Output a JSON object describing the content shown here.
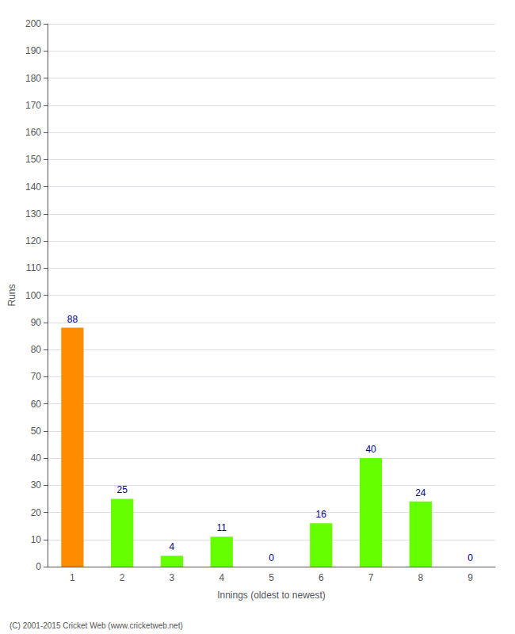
{
  "chart_data": {
    "type": "bar",
    "categories": [
      "1",
      "2",
      "3",
      "4",
      "5",
      "6",
      "7",
      "8",
      "9"
    ],
    "values": [
      88,
      25,
      4,
      11,
      0,
      16,
      40,
      24,
      0
    ],
    "colors": [
      "#FF8C00",
      "#66FF00",
      "#66FF00",
      "#66FF00",
      "#66FF00",
      "#66FF00",
      "#66FF00",
      "#66FF00",
      "#66FF00"
    ],
    "xlabel": "Innings (oldest to newest)",
    "ylabel": "Runs",
    "ylim": [
      0,
      200
    ],
    "yticks": [
      0,
      10,
      20,
      30,
      40,
      50,
      60,
      70,
      80,
      90,
      100,
      110,
      120,
      130,
      140,
      150,
      160,
      170,
      180,
      190,
      200
    ],
    "grid": true,
    "data_labels": true,
    "annotations": [
      "(C) 2001-2015 Cricket Web (www.cricketweb.net)"
    ]
  }
}
